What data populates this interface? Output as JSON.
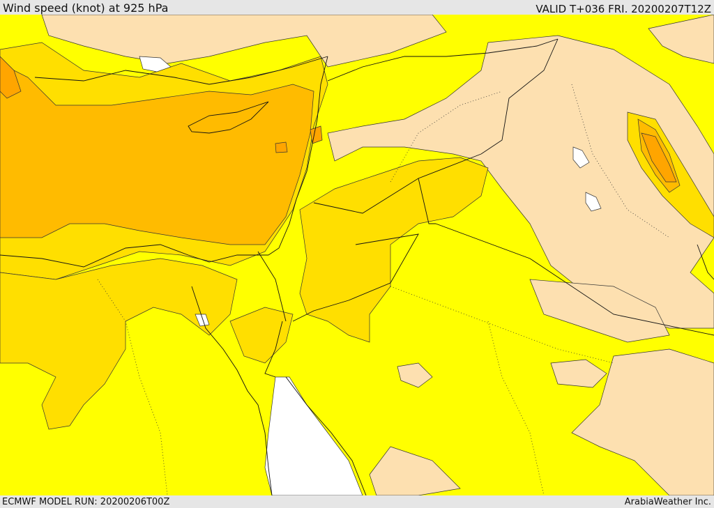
{
  "header": {
    "title": "Wind speed (knot) at 925 hPa",
    "valid_time": "VALID T+036 FRI. 20200207T12Z"
  },
  "footer": {
    "model_run": "ECMWF MODEL RUN: 20200206T00Z",
    "credit": "ArabiaWeather Inc."
  },
  "map": {
    "field": "wind speed",
    "level": "925 hPa",
    "shading_colors": {
      "lowest": "#ffffff",
      "low": "#fde0b0",
      "moderate": "#ffff00",
      "fresh": "#ffdf00",
      "strong": "#ffbb00",
      "strongest": "#ffa500"
    }
  }
}
